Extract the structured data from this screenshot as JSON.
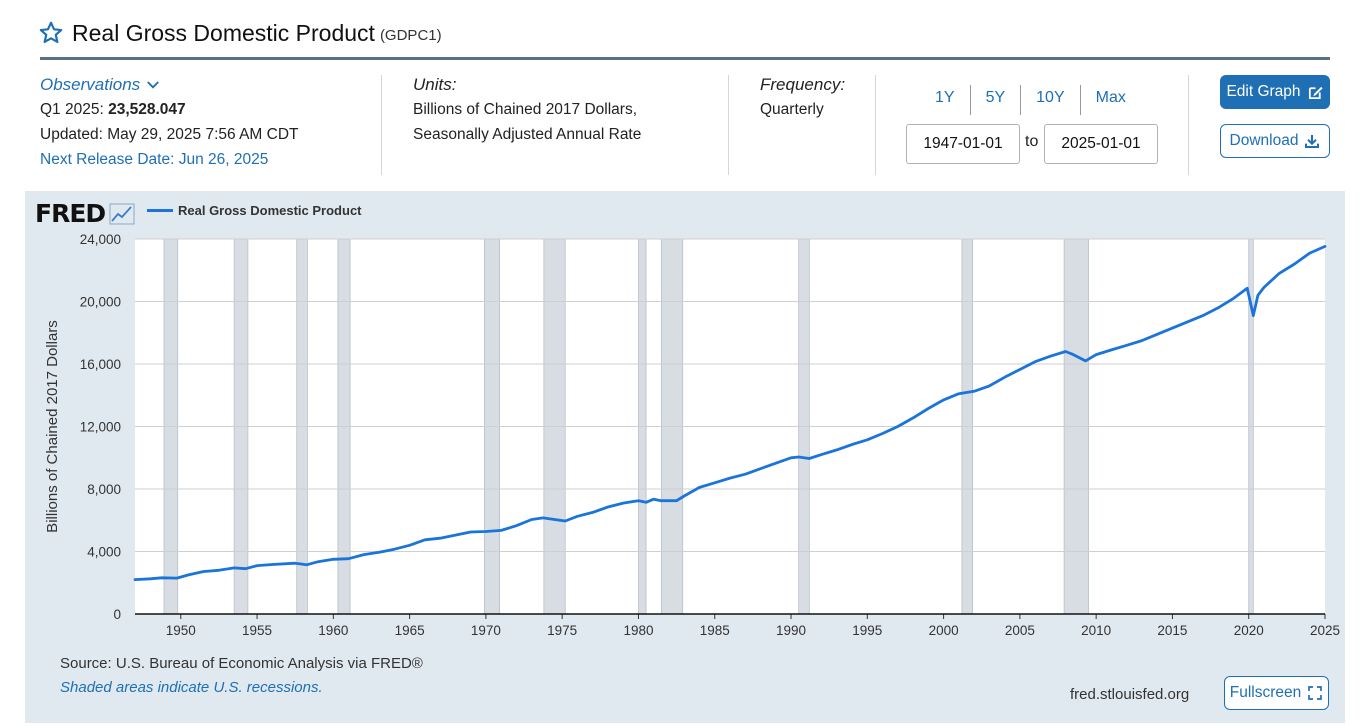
{
  "header": {
    "title": "Real Gross Domestic Product",
    "series_id": "(GDPC1)"
  },
  "observations": {
    "label": "Observations",
    "period": "Q1 2025:",
    "value": "23,528.047",
    "updated": "Updated: May 29, 2025 7:56 AM CDT",
    "next_release": "Next Release Date: Jun 26, 2025"
  },
  "units": {
    "label": "Units:",
    "line1": "Billions of Chained 2017 Dollars,",
    "line2": "Seasonally Adjusted Annual Rate"
  },
  "frequency": {
    "label": "Frequency:",
    "value": "Quarterly"
  },
  "ranges": [
    "1Y",
    "5Y",
    "10Y",
    "Max"
  ],
  "dates": {
    "start": "1947-01-01",
    "to": "to",
    "end": "2025-01-01"
  },
  "buttons": {
    "edit": "Edit Graph",
    "download": "Download",
    "fullscreen": "Fullscreen"
  },
  "footer": {
    "source": "Source: U.S. Bureau of Economic Analysis via FRED®",
    "shading_note": "Shaded areas indicate U.S. recessions.",
    "url": "fred.stlouisfed.org"
  },
  "logo_text": "FRED",
  "colors": {
    "line": "#1a74d9",
    "accent": "#1f6fb5",
    "panel": "#e1e9f0",
    "recession": "#d7dde2"
  },
  "chart_data": {
    "type": "line",
    "ylabel": "Billions of Chained 2017 Dollars",
    "ylim": [
      0,
      24000
    ],
    "xlim": [
      1947,
      2025
    ],
    "y_ticks": [
      "0",
      "4,000",
      "8,000",
      "12,000",
      "16,000",
      "20,000",
      "24,000"
    ],
    "x_ticks": [
      "1950",
      "1955",
      "1960",
      "1965",
      "1970",
      "1975",
      "1980",
      "1985",
      "1990",
      "1995",
      "2000",
      "2005",
      "2010",
      "2015",
      "2020",
      "2025"
    ],
    "legend": "top-left",
    "grid": true,
    "recessions": [
      [
        1948.9,
        1949.8
      ],
      [
        1953.5,
        1954.4
      ],
      [
        1957.6,
        1958.3
      ],
      [
        1960.3,
        1961.1
      ],
      [
        1969.9,
        1970.9
      ],
      [
        1973.8,
        1975.2
      ],
      [
        1980.0,
        1980.5
      ],
      [
        1981.5,
        1982.9
      ],
      [
        1990.5,
        1991.2
      ],
      [
        2001.2,
        2001.9
      ],
      [
        2007.9,
        2009.5
      ],
      [
        2020.0,
        2020.3
      ]
    ],
    "series": [
      {
        "name": "Real Gross Domestic Product",
        "x": [
          1947,
          1948,
          1948.75,
          1949.75,
          1950.5,
          1951.5,
          1952.5,
          1953.5,
          1954.25,
          1955,
          1956,
          1957.5,
          1958.25,
          1959,
          1960,
          1961,
          1962,
          1963,
          1964,
          1965,
          1966,
          1967,
          1968,
          1969,
          1970,
          1971,
          1972,
          1973,
          1973.75,
          1974.5,
          1975.2,
          1976,
          1977,
          1978,
          1979,
          1980,
          1980.5,
          1981,
          1981.5,
          1982.5,
          1983,
          1984,
          1985,
          1986,
          1987,
          1988,
          1989,
          1990,
          1990.5,
          1991.2,
          1992,
          1993,
          1994,
          1995,
          1996,
          1997,
          1998,
          1999,
          2000,
          2001,
          2002,
          2003,
          2004,
          2005,
          2006,
          2007,
          2008,
          2008.5,
          2009.3,
          2010,
          2011,
          2012,
          2013,
          2014,
          2015,
          2016,
          2017,
          2018,
          2019,
          2019.9,
          2020.3,
          2020.6,
          2021,
          2022,
          2023,
          2024,
          2025
        ],
        "values": [
          2200,
          2250,
          2320,
          2300,
          2500,
          2720,
          2800,
          2950,
          2900,
          3100,
          3170,
          3250,
          3150,
          3350,
          3500,
          3540,
          3800,
          3950,
          4150,
          4400,
          4750,
          4850,
          5050,
          5250,
          5280,
          5350,
          5650,
          6050,
          6150,
          6050,
          5950,
          6250,
          6500,
          6850,
          7100,
          7250,
          7150,
          7350,
          7250,
          7250,
          7550,
          8100,
          8400,
          8700,
          8950,
          9300,
          9650,
          10000,
          10050,
          9950,
          10200,
          10500,
          10850,
          11150,
          11550,
          12000,
          12550,
          13150,
          13700,
          14100,
          14250,
          14600,
          15150,
          15650,
          16150,
          16500,
          16800,
          16600,
          16200,
          16600,
          16900,
          17200,
          17500,
          17900,
          18300,
          18700,
          19100,
          19600,
          20200,
          20850,
          19100,
          20400,
          20900,
          21800,
          22400,
          23100,
          23528
        ]
      }
    ]
  }
}
